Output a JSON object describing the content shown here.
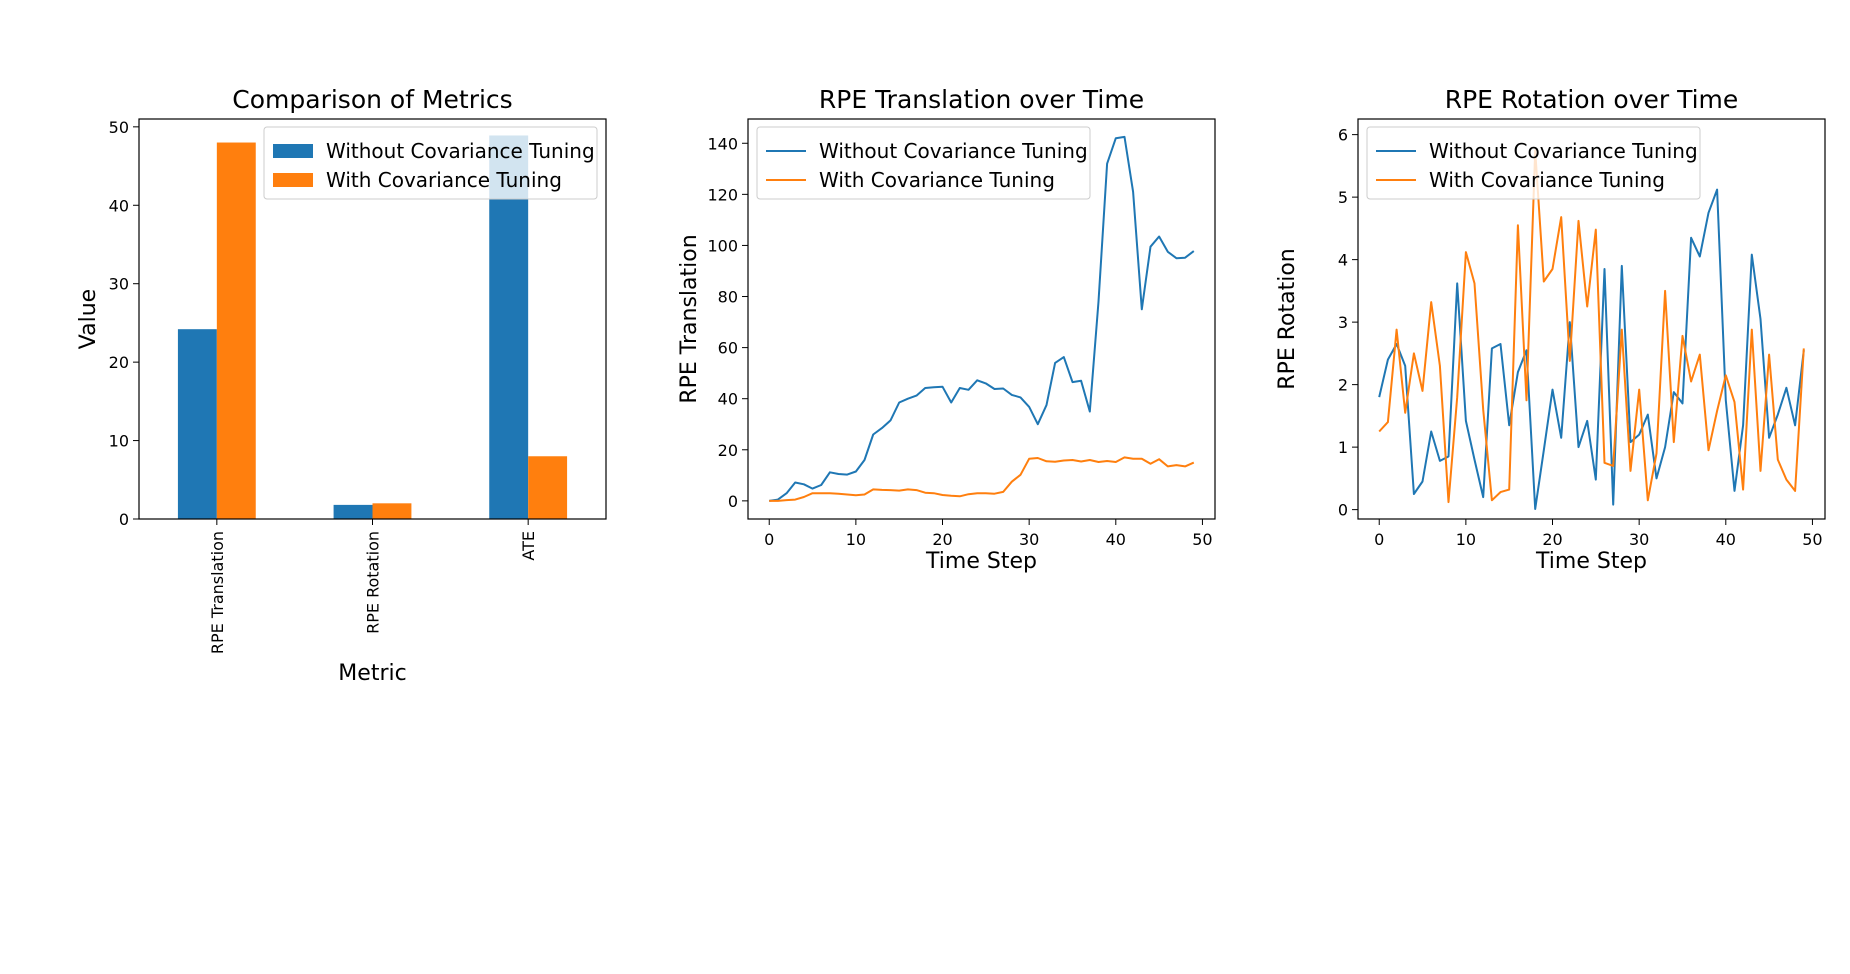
{
  "colors": {
    "without": "#1f77b4",
    "with": "#ff7f0e"
  },
  "chart_data": [
    {
      "type": "bar",
      "title": "Comparison of Metrics",
      "xlabel": "Metric",
      "ylabel": "Value",
      "ylim": [
        0,
        51
      ],
      "yticks": [
        0,
        10,
        20,
        30,
        40,
        50
      ],
      "categories": [
        "RPE Translation",
        "RPE Rotation",
        "ATE"
      ],
      "legend_position": "top-right",
      "series": [
        {
          "name": "Without Covariance Tuning",
          "values": [
            24.2,
            1.8,
            48.9
          ]
        },
        {
          "name": "With Covariance Tuning",
          "values": [
            48.0,
            2.0,
            8.0
          ]
        }
      ]
    },
    {
      "type": "line",
      "title": "RPE Translation over Time",
      "xlabel": "Time Step",
      "ylabel": "RPE Translation",
      "xlim": [
        -2.45,
        51.45
      ],
      "ylim": [
        -7.1,
        149.5
      ],
      "xticks": [
        0,
        10,
        20,
        30,
        40,
        50
      ],
      "yticks": [
        0,
        20,
        40,
        60,
        80,
        100,
        120,
        140
      ],
      "legend_position": "top-left",
      "series": [
        {
          "name": "Without Covariance Tuning",
          "values": [
            0,
            0.5,
            3,
            7.2,
            6.5,
            4.8,
            6.2,
            11.2,
            10.5,
            10.3,
            11.5,
            16,
            26,
            28.5,
            31.5,
            38.5,
            40,
            41.2,
            44.2,
            44.5,
            44.7,
            38.5,
            44.2,
            43.5,
            47.2,
            46,
            43.8,
            44,
            41.5,
            40.5,
            36.8,
            30,
            37.5,
            54,
            56.3,
            46.5,
            47,
            35,
            78,
            132,
            142,
            142.5,
            121,
            75,
            99.5,
            103.5,
            97.5,
            95,
            95.2,
            97.8
          ]
        },
        {
          "name": "With Covariance Tuning",
          "values": [
            0,
            0,
            0.3,
            0.5,
            1.5,
            3,
            3,
            3,
            2.8,
            2.5,
            2.2,
            2.5,
            4.5,
            4.3,
            4.2,
            4,
            4.5,
            4.2,
            3.2,
            3,
            2.3,
            2,
            1.8,
            2.6,
            3,
            3,
            2.8,
            3.5,
            7.5,
            10.2,
            16.5,
            16.8,
            15.5,
            15.3,
            15.8,
            16,
            15.4,
            16,
            15.2,
            15.6,
            15.2,
            17,
            16.5,
            16.5,
            14.5,
            16.3,
            13.5,
            14,
            13.5,
            15
          ]
        }
      ]
    },
    {
      "type": "line",
      "title": "RPE Rotation over Time",
      "xlabel": "Time Step",
      "ylabel": "RPE Rotation",
      "xlim": [
        -2.45,
        51.45
      ],
      "ylim": [
        -0.15,
        6.25
      ],
      "xticks": [
        0,
        10,
        20,
        30,
        40,
        50
      ],
      "yticks": [
        0,
        1,
        2,
        3,
        4,
        5,
        6
      ],
      "legend_position": "top-left",
      "series": [
        {
          "name": "Without Covariance Tuning",
          "values": [
            1.8,
            2.4,
            2.65,
            2.3,
            0.25,
            0.45,
            1.25,
            0.78,
            0.85,
            3.62,
            1.42,
            0.8,
            0.2,
            2.58,
            2.65,
            1.35,
            2.2,
            2.55,
            0.01,
            0.95,
            1.92,
            1.15,
            3.0,
            1.0,
            1.42,
            0.48,
            3.85,
            0.08,
            3.9,
            1.08,
            1.2,
            1.52,
            0.5,
            1.0,
            1.88,
            1.7,
            4.35,
            4.05,
            4.75,
            5.12,
            1.75,
            0.3,
            1.35,
            4.08,
            3.05,
            1.15,
            1.52,
            1.95,
            1.35,
            2.55
          ]
        },
        {
          "name": "With Covariance Tuning",
          "values": [
            1.25,
            1.4,
            2.88,
            1.55,
            2.5,
            1.9,
            3.32,
            2.3,
            0.12,
            1.8,
            4.12,
            3.62,
            1.6,
            0.15,
            0.28,
            0.32,
            4.55,
            1.75,
            5.75,
            3.65,
            3.85,
            4.68,
            2.38,
            4.62,
            3.25,
            4.48,
            0.75,
            0.7,
            2.88,
            0.62,
            1.92,
            0.15,
            0.9,
            3.5,
            1.08,
            2.78,
            2.05,
            2.48,
            0.95,
            1.58,
            2.15,
            1.72,
            0.32,
            2.88,
            0.62,
            2.48,
            0.8,
            0.48,
            0.3,
            2.58
          ]
        }
      ]
    }
  ]
}
